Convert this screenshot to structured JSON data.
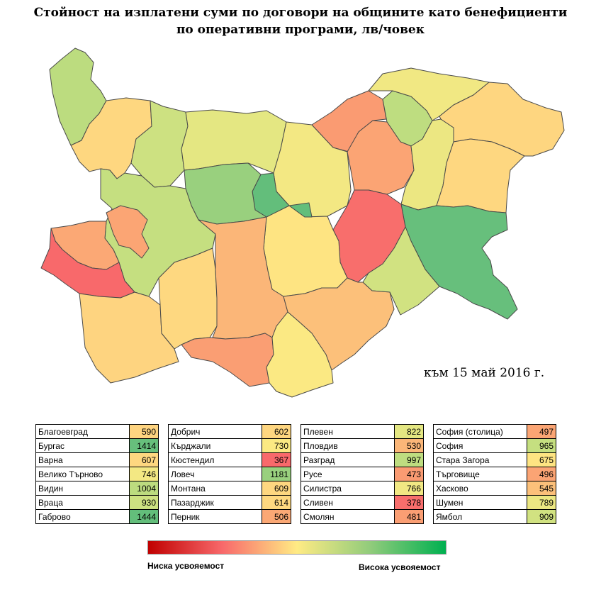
{
  "title_line1": "Стойност на изплатени суми по договори на общините като бенефициенти",
  "title_line2": "по оперативни програми, лв/човек",
  "date_note": "към 15 май 2016 г.",
  "scale": {
    "low_label": "Ниска усвояемост",
    "high_label": "Висока усвояемост"
  },
  "colors": {
    "low": "#f8696b",
    "mid": "#ffeb84",
    "high": "#63be7b"
  },
  "legend_columns": [
    [
      {
        "name": "Благоевград",
        "value": 590,
        "color": "#fed480"
      },
      {
        "name": "Бургас",
        "value": 1414,
        "color": "#67bf7c"
      },
      {
        "name": "Варна",
        "value": 607,
        "color": "#fed780"
      },
      {
        "name": "Велико Търново",
        "value": 746,
        "color": "#f3e883"
      },
      {
        "name": "Видин",
        "value": 1004,
        "color": "#bcdc7f"
      },
      {
        "name": "Враца",
        "value": 930,
        "color": "#cde181"
      },
      {
        "name": "Габрово",
        "value": 1444,
        "color": "#63be7b"
      }
    ],
    [
      {
        "name": "Добрич",
        "value": 602,
        "color": "#fed680"
      },
      {
        "name": "Кърджали",
        "value": 730,
        "color": "#fbe983"
      },
      {
        "name": "Кюстендил",
        "value": 367,
        "color": "#f8696b"
      },
      {
        "name": "Ловеч",
        "value": 1181,
        "color": "#99d07e"
      },
      {
        "name": "Монтана",
        "value": 609,
        "color": "#fed780"
      },
      {
        "name": "Пазарджик",
        "value": 614,
        "color": "#fed880"
      },
      {
        "name": "Перник",
        "value": 506,
        "color": "#fba875"
      }
    ],
    [
      {
        "name": "Плевен",
        "value": 822,
        "color": "#e4e782"
      },
      {
        "name": "Пловдив",
        "value": 530,
        "color": "#fbb678"
      },
      {
        "name": "Разград",
        "value": 997,
        "color": "#bedd80"
      },
      {
        "name": "Русе",
        "value": 473,
        "color": "#fa9b72"
      },
      {
        "name": "Силистра",
        "value": 766,
        "color": "#f1e883"
      },
      {
        "name": "Сливен",
        "value": 378,
        "color": "#f86e6c"
      },
      {
        "name": "Смолян",
        "value": 481,
        "color": "#fa9e73"
      }
    ],
    [
      {
        "name": "София (столица)",
        "value": 497,
        "color": "#fba574"
      },
      {
        "name": "София",
        "value": 965,
        "color": "#c5df80"
      },
      {
        "name": "Стара Загора",
        "value": 675,
        "color": "#fee482"
      },
      {
        "name": "Търговище",
        "value": 496,
        "color": "#fba474"
      },
      {
        "name": "Хасково",
        "value": 545,
        "color": "#fcc07a"
      },
      {
        "name": "Шумен",
        "value": 789,
        "color": "#ece782"
      },
      {
        "name": "Ямбол",
        "value": 909,
        "color": "#d1e281"
      }
    ]
  ]
}
